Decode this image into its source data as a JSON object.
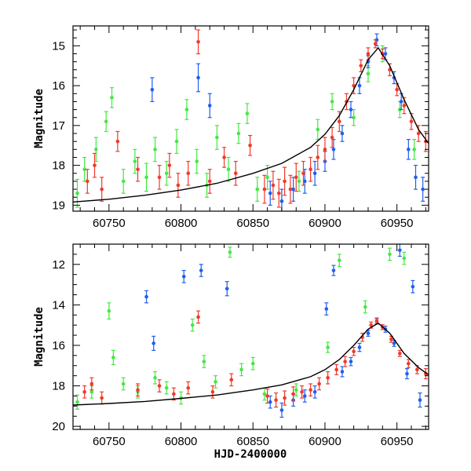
{
  "colors": {
    "green": "#44e844",
    "red": "#f03a2a",
    "blue": "#1f5ff0",
    "model": "#000000"
  },
  "chart_data": [
    {
      "type": "scatter",
      "panel": "top",
      "xlabel": "",
      "ylabel": "Magnitude",
      "xlim": [
        60725,
        60972
      ],
      "ylim": [
        19.15,
        14.5
      ],
      "x_ticks": [
        60750,
        60800,
        60850,
        60900,
        60950
      ],
      "x_tick_labels": [
        "60750",
        "60800",
        "60850",
        "60900",
        "60950"
      ],
      "y_ticks": [
        15,
        16,
        17,
        18,
        19
      ],
      "y_tick_labels": [
        "15",
        "16",
        "17",
        "18",
        "19"
      ],
      "model_curve": {
        "name": "model",
        "x": [
          60725,
          60750,
          60775,
          60800,
          60825,
          60850,
          60870,
          60890,
          60900,
          60910,
          60920,
          60930,
          60937,
          60945,
          60955,
          60965,
          60972
        ],
        "y": [
          18.92,
          18.85,
          18.75,
          18.62,
          18.45,
          18.2,
          17.95,
          17.55,
          17.22,
          16.75,
          16.1,
          15.35,
          15.05,
          15.5,
          16.35,
          17.1,
          17.45
        ]
      },
      "series": [
        {
          "name": "green",
          "x": [
            60728,
            60733,
            60741,
            60748,
            60752,
            60760,
            60768,
            60776,
            60782,
            60790,
            60797,
            60804,
            60811,
            60818,
            60825,
            60833,
            60840,
            60846,
            60853,
            60860,
            60870,
            60882,
            60895,
            60905,
            60920,
            60930,
            60940,
            60952,
            60962
          ],
          "y": [
            18.7,
            18.1,
            17.6,
            16.9,
            16.3,
            18.4,
            17.9,
            18.3,
            17.6,
            18.2,
            17.4,
            16.6,
            17.9,
            18.5,
            17.3,
            18.1,
            17.2,
            16.7,
            18.6,
            18.3,
            18.9,
            18.4,
            17.1,
            16.4,
            16.8,
            15.7,
            15.2,
            16.6,
            17.6
          ],
          "err": [
            0.35,
            0.3,
            0.3,
            0.25,
            0.25,
            0.3,
            0.3,
            0.35,
            0.3,
            0.3,
            0.3,
            0.25,
            0.3,
            0.3,
            0.3,
            0.3,
            0.25,
            0.25,
            0.3,
            0.3,
            0.3,
            0.25,
            0.25,
            0.2,
            0.2,
            0.2,
            0.2,
            0.2,
            0.25
          ]
        },
        {
          "name": "red",
          "x": [
            60735,
            60740,
            60745,
            60756,
            60770,
            60785,
            60792,
            60798,
            60805,
            60812,
            60820,
            60830,
            60838,
            60848,
            60858,
            60864,
            60868,
            60872,
            60876,
            60880,
            60885,
            60890,
            60895,
            60900,
            60905,
            60910,
            60915,
            60920,
            60925,
            60930,
            60935,
            60940,
            60945,
            60950,
            60955,
            60960,
            60965,
            60970
          ],
          "y": [
            18.4,
            18.0,
            18.6,
            17.4,
            18.1,
            18.3,
            18.0,
            18.5,
            18.2,
            14.9,
            18.4,
            17.8,
            18.2,
            17.5,
            18.6,
            18.5,
            18.7,
            18.4,
            18.6,
            18.3,
            18.2,
            18.1,
            17.8,
            17.6,
            17.3,
            16.9,
            16.4,
            16.0,
            15.5,
            15.2,
            14.95,
            15.2,
            15.6,
            16.1,
            16.5,
            16.9,
            17.2,
            17.4
          ],
          "err": [
            0.3,
            0.3,
            0.3,
            0.25,
            0.3,
            0.3,
            0.3,
            0.3,
            0.3,
            0.3,
            0.3,
            0.25,
            0.3,
            0.25,
            0.35,
            0.35,
            0.35,
            0.35,
            0.35,
            0.35,
            0.3,
            0.3,
            0.3,
            0.3,
            0.25,
            0.25,
            0.2,
            0.2,
            0.15,
            0.15,
            0.1,
            0.12,
            0.15,
            0.15,
            0.2,
            0.2,
            0.2,
            0.25
          ]
        },
        {
          "name": "blue",
          "x": [
            60780,
            60812,
            60820,
            60862,
            60870,
            60878,
            60886,
            60893,
            60900,
            60906,
            60912,
            60918,
            60924,
            60930,
            60936,
            60942,
            60948,
            60953,
            60958,
            60963,
            60968
          ],
          "y": [
            16.1,
            15.8,
            16.5,
            18.7,
            18.9,
            18.6,
            18.4,
            18.2,
            17.9,
            17.6,
            17.2,
            16.6,
            16.0,
            15.4,
            14.85,
            15.2,
            15.8,
            16.4,
            17.6,
            18.3,
            18.6
          ],
          "err": [
            0.3,
            0.35,
            0.3,
            0.3,
            0.3,
            0.3,
            0.3,
            0.3,
            0.25,
            0.25,
            0.2,
            0.2,
            0.2,
            0.15,
            0.15,
            0.15,
            0.15,
            0.2,
            0.25,
            0.3,
            0.3
          ]
        }
      ]
    },
    {
      "type": "scatter",
      "panel": "bottom",
      "xlabel": "HJD-2400000",
      "ylabel": "Magnitude",
      "xlim": [
        60725,
        60972
      ],
      "ylim": [
        20.15,
        11.0
      ],
      "x_ticks": [
        60750,
        60800,
        60850,
        60900,
        60950
      ],
      "x_tick_labels": [
        "60750",
        "60800",
        "60850",
        "60900",
        "60950"
      ],
      "y_ticks": [
        12,
        14,
        16,
        18,
        20
      ],
      "y_tick_labels": [
        "12",
        "14",
        "16",
        "18",
        "20"
      ],
      "model_curve": {
        "name": "model",
        "x": [
          60725,
          60750,
          60775,
          60800,
          60825,
          60850,
          60870,
          60890,
          60900,
          60910,
          60920,
          60930,
          60937,
          60945,
          60955,
          60965,
          60972
        ],
        "y": [
          18.95,
          18.87,
          18.77,
          18.62,
          18.45,
          18.2,
          17.95,
          17.55,
          17.2,
          16.7,
          16.0,
          15.2,
          14.9,
          15.4,
          16.4,
          17.1,
          17.45
        ]
      },
      "series": [
        {
          "name": "green",
          "x": [
            60728,
            60738,
            60750,
            60753,
            60760,
            60770,
            60782,
            60790,
            60800,
            60808,
            60816,
            60824,
            60834,
            60842,
            60850,
            60858,
            60880,
            60902,
            60910,
            60928,
            60945,
            60955
          ],
          "y": [
            18.8,
            18.3,
            14.3,
            16.6,
            17.9,
            18.3,
            17.6,
            18.1,
            18.6,
            15.0,
            16.8,
            17.8,
            11.4,
            17.2,
            16.9,
            18.4,
            18.2,
            16.1,
            11.8,
            14.1,
            11.5,
            11.7
          ],
          "err": [
            0.35,
            0.3,
            0.4,
            0.35,
            0.3,
            0.3,
            0.3,
            0.3,
            0.3,
            0.3,
            0.3,
            0.3,
            0.25,
            0.3,
            0.3,
            0.3,
            0.3,
            0.25,
            0.3,
            0.3,
            0.3,
            0.3
          ]
        },
        {
          "name": "red",
          "x": [
            60733,
            60738,
            60745,
            60770,
            60785,
            60795,
            60805,
            60812,
            60822,
            60835,
            60860,
            60866,
            60872,
            60878,
            60884,
            60890,
            60896,
            60902,
            60908,
            60914,
            60920,
            60926,
            60932,
            60936,
            60940,
            60946,
            60952,
            60958,
            60964,
            60970
          ],
          "y": [
            18.3,
            17.9,
            18.6,
            18.2,
            18.0,
            18.4,
            18.1,
            14.6,
            18.3,
            17.7,
            18.5,
            18.7,
            18.6,
            18.4,
            18.3,
            18.2,
            17.9,
            17.6,
            17.2,
            16.8,
            16.3,
            15.6,
            15.0,
            14.8,
            15.1,
            15.7,
            16.4,
            16.9,
            17.2,
            17.4
          ],
          "err": [
            0.3,
            0.3,
            0.3,
            0.3,
            0.3,
            0.3,
            0.3,
            0.3,
            0.3,
            0.3,
            0.35,
            0.35,
            0.35,
            0.35,
            0.3,
            0.3,
            0.3,
            0.3,
            0.25,
            0.25,
            0.2,
            0.2,
            0.15,
            0.12,
            0.12,
            0.15,
            0.15,
            0.2,
            0.2,
            0.25
          ]
        },
        {
          "name": "blue",
          "x": [
            60776,
            60781,
            60802,
            60814,
            60832,
            60862,
            60870,
            60878,
            60886,
            60893,
            60901,
            60906,
            60912,
            60918,
            60924,
            60930,
            60936,
            60942,
            60948,
            60952,
            60957,
            60961,
            60966
          ],
          "y": [
            13.6,
            15.9,
            12.6,
            12.3,
            13.2,
            18.8,
            19.2,
            18.7,
            18.5,
            18.3,
            14.2,
            12.3,
            17.3,
            16.8,
            16.1,
            15.4,
            14.8,
            15.2,
            15.9,
            11.3,
            17.4,
            13.1,
            18.7
          ],
          "err": [
            0.3,
            0.35,
            0.3,
            0.3,
            0.35,
            0.3,
            0.35,
            0.3,
            0.3,
            0.3,
            0.3,
            0.25,
            0.25,
            0.2,
            0.2,
            0.15,
            0.15,
            0.15,
            0.15,
            0.3,
            0.25,
            0.3,
            0.35
          ]
        }
      ]
    }
  ]
}
